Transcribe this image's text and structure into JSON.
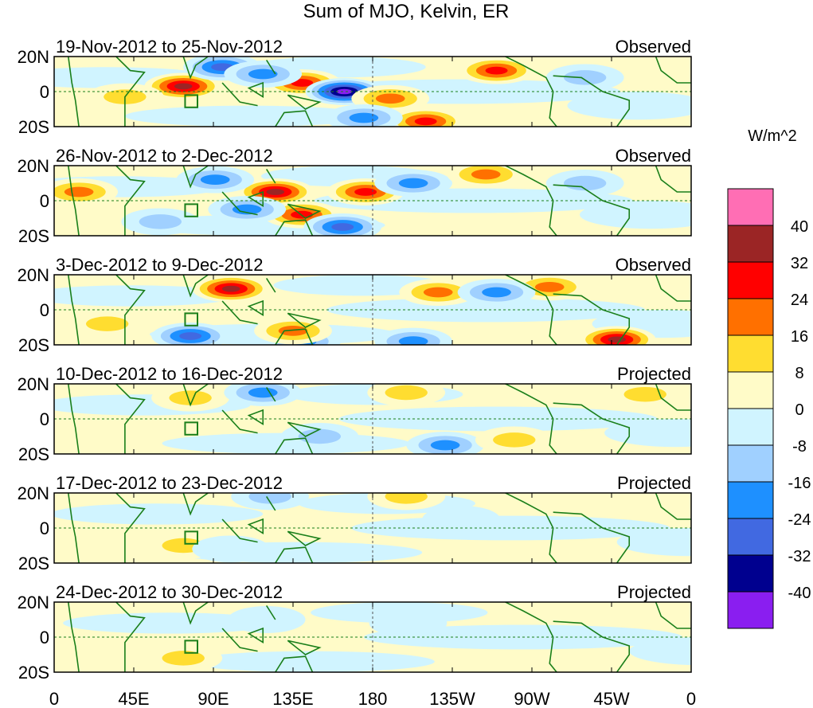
{
  "chart_data": {
    "type": "heatmap",
    "title": "Sum of MJO, Kelvin, ER",
    "colorbar_label": "W/m^2",
    "levels": [
      -40,
      -32,
      -24,
      -16,
      -8,
      0,
      8,
      16,
      24,
      32,
      40
    ],
    "colors": [
      "#8A1EF0",
      "#00008F",
      "#4169E1",
      "#1E90FF",
      "#A0D0FF",
      "#D0F4FF",
      "#FFFBC8",
      "#FFDD30",
      "#FF7000",
      "#FF0000",
      "#9B2525",
      "#FF6EB4"
    ],
    "level_labels": [
      "40",
      "32",
      "24",
      "16",
      "8",
      "0",
      "-8",
      "-16",
      "-24",
      "-32",
      "-40"
    ],
    "x_ticks": [
      "0",
      "45E",
      "90E",
      "135E",
      "180",
      "135W",
      "90W",
      "45W",
      "0"
    ],
    "y_ticks": [
      "20N",
      "0",
      "20S"
    ],
    "xlim": [
      0,
      360
    ],
    "ylim": [
      -20,
      20
    ],
    "panels": [
      {
        "dates": "19-Nov-2012 to 25-Nov-2012",
        "status": "Observed",
        "anomalies": [
          {
            "lon": 73,
            "lat": 3,
            "value": 34
          },
          {
            "lon": 140,
            "lat": 5,
            "value": 30
          },
          {
            "lon": 164,
            "lat": 0,
            "value": -42
          },
          {
            "lon": 210,
            "lat": -17,
            "value": 30
          },
          {
            "lon": 250,
            "lat": 12,
            "value": 26
          },
          {
            "lon": 95,
            "lat": 14,
            "value": -26
          },
          {
            "lon": 118,
            "lat": 10,
            "value": -20
          },
          {
            "lon": 190,
            "lat": -4,
            "value": 18
          },
          {
            "lon": 40,
            "lat": -3,
            "value": 10
          },
          {
            "lon": 300,
            "lat": 8,
            "value": -12
          },
          {
            "lon": 175,
            "lat": -15,
            "value": -16
          }
        ]
      },
      {
        "dates": "26-Nov-2012 to 2-Dec-2012",
        "status": "Observed",
        "anomalies": [
          {
            "lon": 125,
            "lat": 5,
            "value": 34
          },
          {
            "lon": 176,
            "lat": 5,
            "value": 26
          },
          {
            "lon": 140,
            "lat": -8,
            "value": 30
          },
          {
            "lon": 91,
            "lat": 12,
            "value": -22
          },
          {
            "lon": 203,
            "lat": 10,
            "value": -18
          },
          {
            "lon": 244,
            "lat": 15,
            "value": 20
          },
          {
            "lon": 109,
            "lat": -5,
            "value": -16
          },
          {
            "lon": 14,
            "lat": 5,
            "value": 18
          },
          {
            "lon": 163,
            "lat": -15,
            "value": -24
          },
          {
            "lon": 300,
            "lat": 10,
            "value": -12
          },
          {
            "lon": 60,
            "lat": -12,
            "value": -10
          }
        ]
      },
      {
        "dates": "3-Dec-2012 to 9-Dec-2012",
        "status": "Observed",
        "anomalies": [
          {
            "lon": 100,
            "lat": 12,
            "value": 34
          },
          {
            "lon": 77,
            "lat": -15,
            "value": -26
          },
          {
            "lon": 318,
            "lat": -17,
            "value": 34
          },
          {
            "lon": 217,
            "lat": 10,
            "value": 20
          },
          {
            "lon": 280,
            "lat": 13,
            "value": 20
          },
          {
            "lon": 140,
            "lat": -18,
            "value": -18
          },
          {
            "lon": 203,
            "lat": -18,
            "value": -18
          },
          {
            "lon": 135,
            "lat": -12,
            "value": 18
          },
          {
            "lon": 250,
            "lat": 10,
            "value": -18
          },
          {
            "lon": 30,
            "lat": -8,
            "value": 10
          }
        ]
      },
      {
        "dates": "10-Dec-2012 to 16-Dec-2012",
        "status": "Projected",
        "anomalies": [
          {
            "lon": 77,
            "lat": 12,
            "value": 12
          },
          {
            "lon": 118,
            "lat": 15,
            "value": -18
          },
          {
            "lon": 221,
            "lat": -15,
            "value": -18
          },
          {
            "lon": 199,
            "lat": 15,
            "value": 10
          },
          {
            "lon": 334,
            "lat": 14,
            "value": 12
          },
          {
            "lon": 260,
            "lat": -12,
            "value": 10
          },
          {
            "lon": 150,
            "lat": -10,
            "value": -10
          }
        ]
      },
      {
        "dates": "17-Dec-2012 to 23-Dec-2012",
        "status": "Projected",
        "anomalies": [
          {
            "lon": 73,
            "lat": -10,
            "value": 12
          },
          {
            "lon": 199,
            "lat": 18,
            "value": 10
          },
          {
            "lon": 122,
            "lat": 18,
            "value": -10
          },
          {
            "lon": 230,
            "lat": 5,
            "value": -6
          },
          {
            "lon": 100,
            "lat": -12,
            "value": -6
          }
        ]
      },
      {
        "dates": "24-Dec-2012 to 30-Dec-2012",
        "status": "Projected",
        "anomalies": [
          {
            "lon": 73,
            "lat": -12,
            "value": 12
          },
          {
            "lon": 200,
            "lat": 8,
            "value": -6
          },
          {
            "lon": 120,
            "lat": 10,
            "value": -6
          }
        ]
      }
    ]
  }
}
